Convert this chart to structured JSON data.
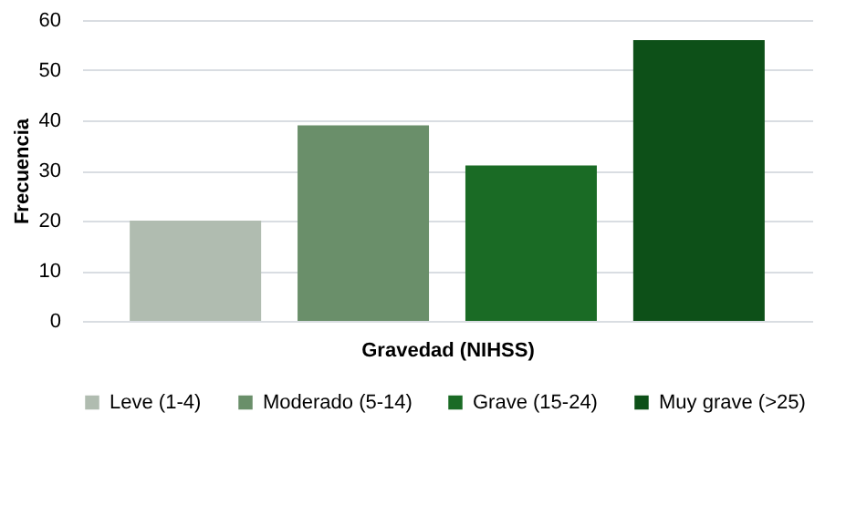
{
  "chart_data": {
    "type": "bar",
    "xlabel": "Gravedad (NIHSS)",
    "ylabel": "Frecuencia",
    "categories": [
      null,
      null,
      null,
      null
    ],
    "series": [
      {
        "name": "Leve (1-4)",
        "color": "#b0bcb0",
        "values": [
          20,
          null,
          null,
          null
        ]
      },
      {
        "name": "Moderado (5-14)",
        "color": "#6a8f6a",
        "values": [
          null,
          39,
          null,
          null
        ]
      },
      {
        "name": "Grave (15-24)",
        "color": "#1a6b25",
        "values": [
          null,
          null,
          31,
          null
        ]
      },
      {
        "name": "Muy grave (>25)",
        "color": "#0d5018",
        "values": [
          null,
          null,
          null,
          56
        ]
      }
    ],
    "ylim": [
      0,
      60
    ],
    "yticks": [
      0,
      10,
      20,
      30,
      40,
      50,
      60
    ],
    "grid": "y",
    "legend": "bottom",
    "tick_labels": "y"
  }
}
